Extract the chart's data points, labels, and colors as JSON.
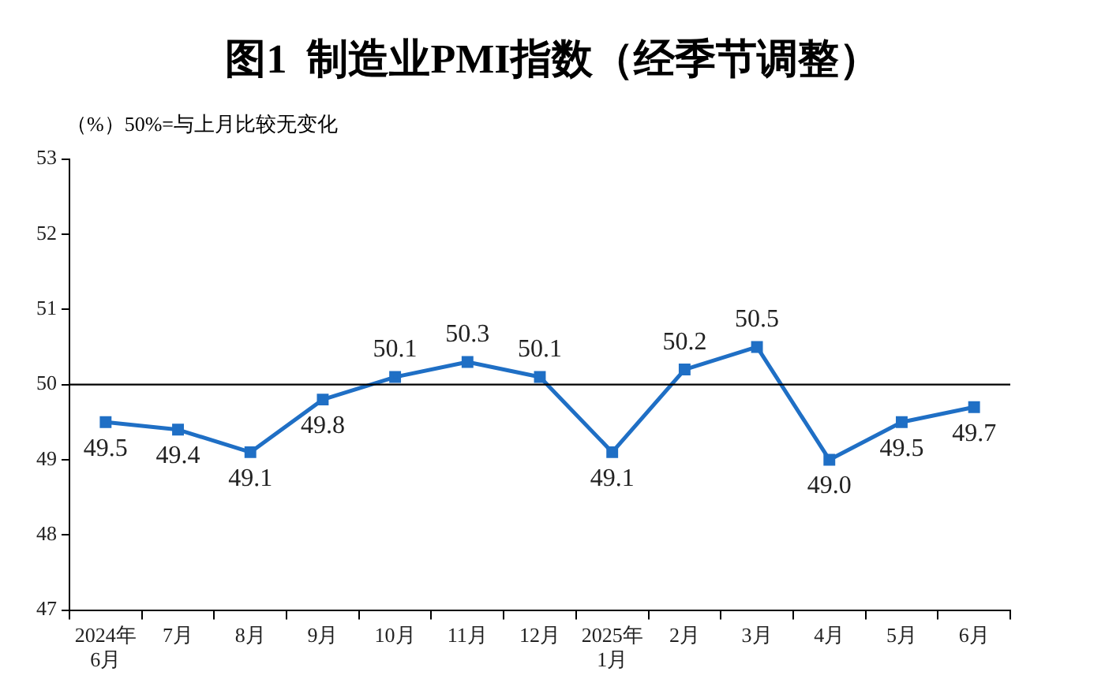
{
  "chart_data": {
    "type": "line",
    "title": "图1  制造业PMI指数（经季节调整）",
    "ylabel": "（%）50%=与上月比较无变化",
    "categories": [
      "2024年\n6月",
      "7月",
      "8月",
      "9月",
      "10月",
      "11月",
      "12月",
      "2025年\n1月",
      "2月",
      "3月",
      "4月",
      "5月",
      "6月"
    ],
    "series": [
      {
        "color": "#1f6fc5",
        "values": [
          49.5,
          49.4,
          49.1,
          49.8,
          50.1,
          50.3,
          50.1,
          49.1,
          50.2,
          50.5,
          49.0,
          49.5,
          49.7
        ],
        "value_labels": [
          "49.5",
          "49.4",
          "49.1",
          "49.8",
          "50.1",
          "50.3",
          "50.1",
          "49.1",
          "50.2",
          "50.5",
          "49.0",
          "49.5",
          "49.7"
        ]
      }
    ],
    "ylim": [
      47,
      53
    ],
    "yticks": [
      47,
      48,
      49,
      50,
      51,
      52,
      53
    ],
    "grid": false,
    "legend": false,
    "marker": "square",
    "line_style": "solid",
    "ref_lines": [
      {
        "axis": "y",
        "value": 50,
        "color": "#000000"
      }
    ]
  }
}
